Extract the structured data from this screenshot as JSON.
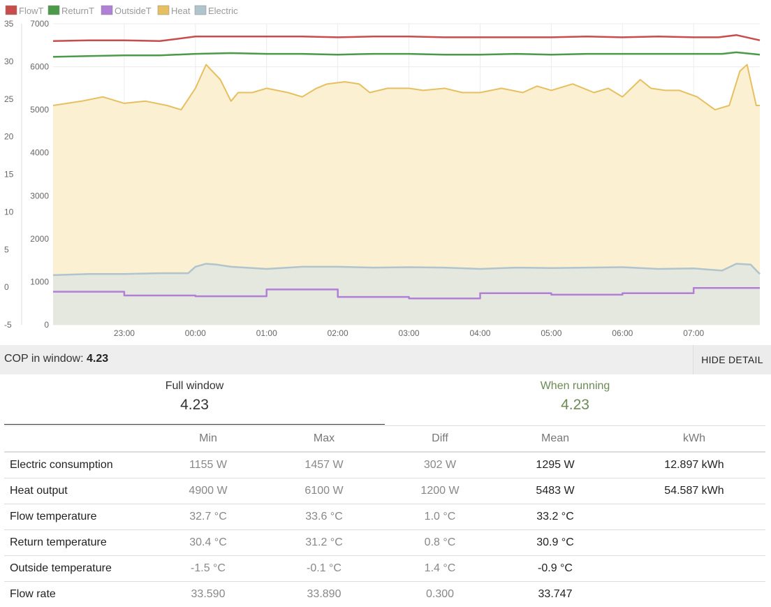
{
  "chart_data": {
    "type": "line",
    "x_tick_labels": [
      "23:00",
      "00:00",
      "01:00",
      "02:00",
      "03:00",
      "04:00",
      "05:00",
      "06:00",
      "07:00"
    ],
    "y_left_temperature_ticks": [
      35,
      30,
      25,
      20,
      15,
      10,
      5,
      0,
      -5
    ],
    "y_right_power_ticks": [
      7000,
      6000,
      5000,
      4000,
      3000,
      2000,
      1000,
      0
    ],
    "temperature_range": [
      -5,
      35
    ],
    "power_range": [
      0,
      7000
    ],
    "x_range_hours": [
      -2.0,
      7.93
    ],
    "grid": true,
    "legend_position": "top-left",
    "legend": [
      "FlowT",
      "ReturnT",
      "OutsideT",
      "Heat",
      "Electric"
    ],
    "series": [
      {
        "name": "FlowT",
        "axis": "temperature",
        "color": "#c94c4c",
        "values": [
          [
            -2.0,
            32.7
          ],
          [
            -1.5,
            32.8
          ],
          [
            -1.0,
            32.8
          ],
          [
            -0.5,
            32.7
          ],
          [
            0.0,
            33.3
          ],
          [
            0.5,
            33.3
          ],
          [
            1.0,
            33.3
          ],
          [
            1.5,
            33.3
          ],
          [
            2.0,
            33.2
          ],
          [
            2.5,
            33.3
          ],
          [
            3.0,
            33.3
          ],
          [
            3.5,
            33.2
          ],
          [
            4.0,
            33.2
          ],
          [
            4.5,
            33.2
          ],
          [
            5.0,
            33.2
          ],
          [
            5.5,
            33.3
          ],
          [
            6.0,
            33.2
          ],
          [
            6.5,
            33.3
          ],
          [
            7.0,
            33.2
          ],
          [
            7.35,
            33.2
          ],
          [
            7.6,
            33.5
          ],
          [
            7.93,
            32.8
          ]
        ]
      },
      {
        "name": "ReturnT",
        "axis": "temperature",
        "color": "#4a9a4a",
        "values": [
          [
            -2.0,
            30.6
          ],
          [
            -1.5,
            30.7
          ],
          [
            -1.0,
            30.8
          ],
          [
            -0.5,
            30.8
          ],
          [
            0.0,
            31.0
          ],
          [
            0.5,
            31.1
          ],
          [
            1.0,
            31.0
          ],
          [
            1.5,
            31.0
          ],
          [
            2.0,
            30.9
          ],
          [
            2.5,
            31.0
          ],
          [
            3.0,
            31.0
          ],
          [
            3.5,
            30.9
          ],
          [
            4.0,
            30.9
          ],
          [
            4.5,
            31.0
          ],
          [
            5.0,
            30.9
          ],
          [
            5.5,
            31.0
          ],
          [
            6.0,
            31.0
          ],
          [
            6.5,
            31.0
          ],
          [
            7.0,
            31.0
          ],
          [
            7.4,
            31.0
          ],
          [
            7.6,
            31.2
          ],
          [
            7.93,
            30.9
          ]
        ]
      },
      {
        "name": "OutsideT",
        "axis": "temperature",
        "color": "#b07fd6",
        "values": [
          [
            -2.0,
            -0.6
          ],
          [
            -1.0,
            -0.6
          ],
          [
            -1.0,
            -1.1
          ],
          [
            0.0,
            -1.1
          ],
          [
            0.0,
            -1.2
          ],
          [
            1.0,
            -1.2
          ],
          [
            1.0,
            -0.3
          ],
          [
            2.0,
            -0.3
          ],
          [
            2.0,
            -1.3
          ],
          [
            3.0,
            -1.3
          ],
          [
            3.0,
            -1.5
          ],
          [
            4.0,
            -1.5
          ],
          [
            4.0,
            -0.8
          ],
          [
            5.0,
            -0.8
          ],
          [
            5.0,
            -1.0
          ],
          [
            6.0,
            -1.0
          ],
          [
            6.0,
            -0.8
          ],
          [
            7.0,
            -0.8
          ],
          [
            7.0,
            -0.1
          ],
          [
            7.93,
            -0.1
          ]
        ]
      },
      {
        "name": "Heat",
        "axis": "power",
        "color": "#e6c060",
        "values": [
          [
            -2.0,
            5100
          ],
          [
            -1.6,
            5200
          ],
          [
            -1.3,
            5300
          ],
          [
            -1.0,
            5150
          ],
          [
            -0.7,
            5200
          ],
          [
            -0.4,
            5100
          ],
          [
            -0.2,
            5000
          ],
          [
            0.0,
            5500
          ],
          [
            0.15,
            6050
          ],
          [
            0.35,
            5700
          ],
          [
            0.5,
            5200
          ],
          [
            0.6,
            5400
          ],
          [
            0.8,
            5400
          ],
          [
            1.0,
            5500
          ],
          [
            1.3,
            5400
          ],
          [
            1.5,
            5300
          ],
          [
            1.7,
            5500
          ],
          [
            1.85,
            5600
          ],
          [
            2.1,
            5650
          ],
          [
            2.3,
            5600
          ],
          [
            2.45,
            5400
          ],
          [
            2.7,
            5500
          ],
          [
            3.0,
            5500
          ],
          [
            3.2,
            5450
          ],
          [
            3.5,
            5500
          ],
          [
            3.75,
            5400
          ],
          [
            4.0,
            5400
          ],
          [
            4.3,
            5500
          ],
          [
            4.6,
            5400
          ],
          [
            4.8,
            5550
          ],
          [
            5.0,
            5450
          ],
          [
            5.3,
            5600
          ],
          [
            5.6,
            5400
          ],
          [
            5.8,
            5500
          ],
          [
            6.0,
            5300
          ],
          [
            6.25,
            5700
          ],
          [
            6.4,
            5500
          ],
          [
            6.6,
            5450
          ],
          [
            6.8,
            5450
          ],
          [
            7.05,
            5300
          ],
          [
            7.3,
            5000
          ],
          [
            7.5,
            5100
          ],
          [
            7.65,
            5900
          ],
          [
            7.75,
            6050
          ],
          [
            7.88,
            5100
          ],
          [
            7.93,
            5100
          ]
        ]
      },
      {
        "name": "Electric",
        "axis": "power",
        "color": "#b0c4cc",
        "values": [
          [
            -2.0,
            1155
          ],
          [
            -1.5,
            1180
          ],
          [
            -1.0,
            1180
          ],
          [
            -0.5,
            1200
          ],
          [
            -0.1,
            1200
          ],
          [
            0.0,
            1350
          ],
          [
            0.15,
            1420
          ],
          [
            0.3,
            1400
          ],
          [
            0.5,
            1350
          ],
          [
            1.0,
            1300
          ],
          [
            1.5,
            1350
          ],
          [
            2.0,
            1350
          ],
          [
            2.5,
            1330
          ],
          [
            3.0,
            1340
          ],
          [
            3.5,
            1330
          ],
          [
            4.0,
            1300
          ],
          [
            4.5,
            1330
          ],
          [
            5.0,
            1320
          ],
          [
            5.5,
            1330
          ],
          [
            6.0,
            1340
          ],
          [
            6.5,
            1300
          ],
          [
            7.0,
            1310
          ],
          [
            7.4,
            1260
          ],
          [
            7.6,
            1420
          ],
          [
            7.8,
            1400
          ],
          [
            7.93,
            1180
          ]
        ]
      }
    ]
  },
  "cop_bar": {
    "label": "COP in window: ",
    "value": "4.23",
    "button": "HIDE DETAIL"
  },
  "summary": {
    "full": {
      "title": "Full window",
      "value": "4.23"
    },
    "running": {
      "title": "When running",
      "value": "4.23"
    }
  },
  "stats_table": {
    "headers": [
      "",
      "Min",
      "Max",
      "Diff",
      "Mean",
      "kWh"
    ],
    "rows": [
      {
        "name": "Electric consumption",
        "min": "1155 W",
        "max": "1457 W",
        "diff": "302 W",
        "mean": "1295 W",
        "kwh": "12.897 kWh"
      },
      {
        "name": "Heat output",
        "min": "4900 W",
        "max": "6100 W",
        "diff": "1200 W",
        "mean": "5483 W",
        "kwh": "54.587 kWh"
      },
      {
        "name": "Flow temperature",
        "min": "32.7 °C",
        "max": "33.6 °C",
        "diff": "1.0 °C",
        "mean": "33.2 °C",
        "kwh": ""
      },
      {
        "name": "Return temperature",
        "min": "30.4 °C",
        "max": "31.2 °C",
        "diff": "0.8 °C",
        "mean": "30.9 °C",
        "kwh": ""
      },
      {
        "name": "Outside temperature",
        "min": "-1.5 °C",
        "max": "-0.1 °C",
        "diff": "1.4 °C",
        "mean": "-0.9 °C",
        "kwh": ""
      },
      {
        "name": "Flow rate",
        "min": "33.590",
        "max": "33.890",
        "diff": "0.300",
        "mean": "33.747",
        "kwh": ""
      }
    ]
  }
}
